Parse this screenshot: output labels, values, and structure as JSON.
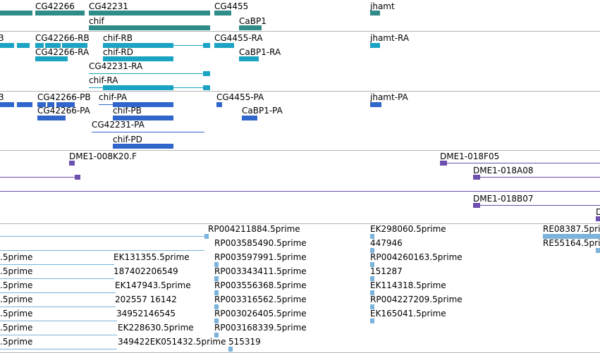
{
  "colors": {
    "gene": "#2f8c88",
    "transcript_ra": "#1aa3c2",
    "transcript_pa": "#3066cc",
    "clone": "#6d4fb0",
    "est": "#7ab3dc",
    "divider": "#b4b4b4"
  },
  "tracks": {
    "genes": {
      "labels": [
        "CG42266",
        "CG42231",
        "chif",
        "CG4455",
        "CaBP1",
        "jhamt"
      ]
    },
    "transcripts": {
      "labels": [
        "CG42266-RB",
        "chif-RB",
        "CG4455-RA",
        "jhamt-RA",
        "CG42266-RA",
        "chif-RD",
        "CaBP1-RA",
        "CG42231-RA",
        "chif-RA"
      ],
      "partial_left_label": "3"
    },
    "proteins": {
      "labels": [
        "CG42266-PB",
        "chif-PA",
        "CG4455-PA",
        "jhamt-PA",
        "CG42266-PA",
        "chif-PB",
        "CaBP1-PA",
        "CG42231-PA",
        "chif-PD"
      ],
      "partial_left_label": "3"
    },
    "clones": {
      "labels": [
        "DME1-008K20.F",
        "DME1-018F05",
        "DME1-018A08",
        "DME1-018B07"
      ],
      "partial_right_label": "D"
    },
    "ests": {
      "col_a": [
        ".5prime",
        ".5prime",
        ".5prime",
        ".5prime",
        ".5prime",
        ".5prime",
        ".5prime"
      ],
      "col_b": [
        "EK131355.5prime",
        "187402206549",
        "EK147943.5prime",
        "202557 16142",
        "34952146545",
        "EK228630.5prime",
        "349422EK051432.5prime"
      ],
      "col_c": [
        "RP004211884.5prime",
        "RP003585490.5prime",
        "RP003597991.5prime",
        "RP003343411.5prime",
        "RP003556368.5prime",
        "RP003316562.5prime",
        "RP003026405.5prime",
        "RP003168339.5prime",
        "515319"
      ],
      "col_d": [
        "EK298060.5prime",
        "447946",
        "RP004260163.5prime",
        "151287",
        "EK114318.5prime",
        "RP004227209.5prime",
        "EK165041.5prime"
      ],
      "col_e": [
        "RE08387.5prime",
        "RE55164.5prime"
      ]
    }
  }
}
